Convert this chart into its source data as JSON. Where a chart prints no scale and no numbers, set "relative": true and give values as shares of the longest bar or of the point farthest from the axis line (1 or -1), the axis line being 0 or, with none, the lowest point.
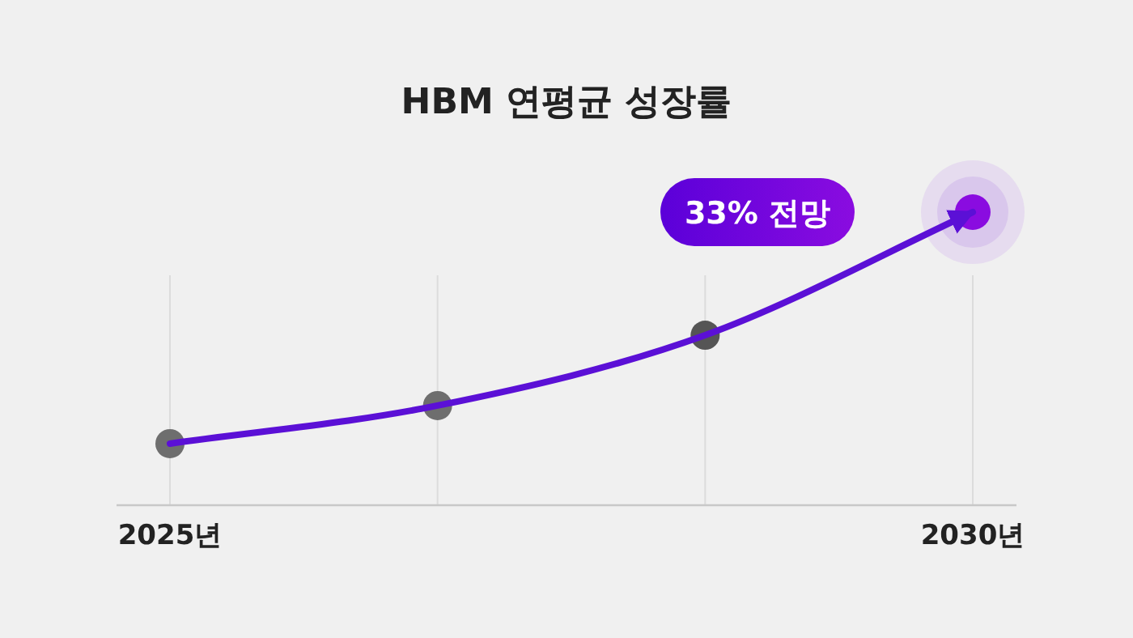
{
  "chart_data": {
    "type": "line",
    "title": "HBM 연평균 성장률",
    "categories": [
      "2025년",
      null,
      null,
      "2030년"
    ],
    "relative": true,
    "series": [
      {
        "color": "#5b10d6",
        "values": [
          0.21,
          0.34,
          0.58,
          1
        ]
      }
    ],
    "marker": "circle",
    "grid": "x",
    "annotations": [
      "33% 전망"
    ]
  }
}
